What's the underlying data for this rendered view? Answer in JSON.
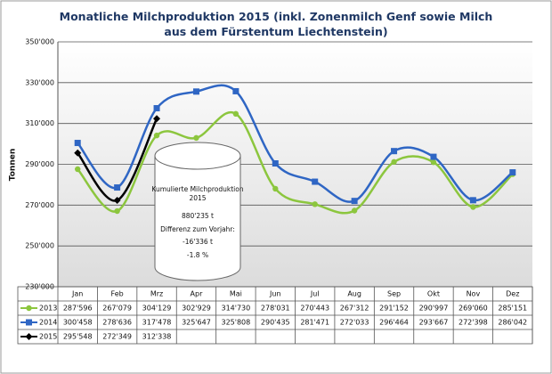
{
  "chart_data": {
    "type": "line",
    "title": "Monatliche Milchproduktion 2015 (inkl. Zonenmilch Genf sowie Milch aus dem Fürstentum Liechtenstein)",
    "y_label": "Tonnen",
    "categories": [
      "Jan",
      "Feb",
      "Mrz",
      "Apr",
      "Mai",
      "Jun",
      "Jul",
      "Aug",
      "Sep",
      "Okt",
      "Nov",
      "Dez"
    ],
    "series": [
      {
        "name": "2013",
        "color": "#8cc63e",
        "marker": "circle",
        "values": [
          287596,
          267079,
          304129,
          302929,
          314730,
          278031,
          270443,
          267312,
          291152,
          290997,
          269060,
          285151
        ],
        "value_labels": [
          "287'596",
          "267'079",
          "304'129",
          "302'929",
          "314'730",
          "278'031",
          "270'443",
          "267'312",
          "291'152",
          "290'997",
          "269'060",
          "285'151"
        ]
      },
      {
        "name": "2014",
        "color": "#2f66c4",
        "marker": "square",
        "values": [
          300458,
          278636,
          317478,
          325647,
          325808,
          290435,
          281471,
          272033,
          296464,
          293667,
          272398,
          286042
        ],
        "value_labels": [
          "300'458",
          "278'636",
          "317'478",
          "325'647",
          "325'808",
          "290'435",
          "281'471",
          "272'033",
          "296'464",
          "293'667",
          "272'398",
          "286'042"
        ]
      },
      {
        "name": "2015",
        "color": "#000000",
        "marker": "diamond",
        "values": [
          295548,
          272349,
          312338,
          null,
          null,
          null,
          null,
          null,
          null,
          null,
          null,
          null
        ],
        "value_labels": [
          "295'548",
          "272'349",
          "312'338",
          null,
          null,
          null,
          null,
          null,
          null,
          null,
          null,
          null
        ]
      }
    ],
    "ylim": [
      230000,
      350000
    ],
    "yticks": [
      {
        "value": 230000,
        "label": "230'000"
      },
      {
        "value": 250000,
        "label": "250'000"
      },
      {
        "value": 270000,
        "label": "270'000"
      },
      {
        "value": 290000,
        "label": "290'000"
      },
      {
        "value": 310000,
        "label": "310'000"
      },
      {
        "value": 330000,
        "label": "330'000"
      },
      {
        "value": 350000,
        "label": "350'000"
      }
    ],
    "grid": true,
    "annotation": [
      "Kumulierte Milchproduktion",
      "2015",
      "880'235 t",
      "Differenz zum Vorjahr:",
      "-16'336 t",
      "-1.8 %"
    ]
  }
}
